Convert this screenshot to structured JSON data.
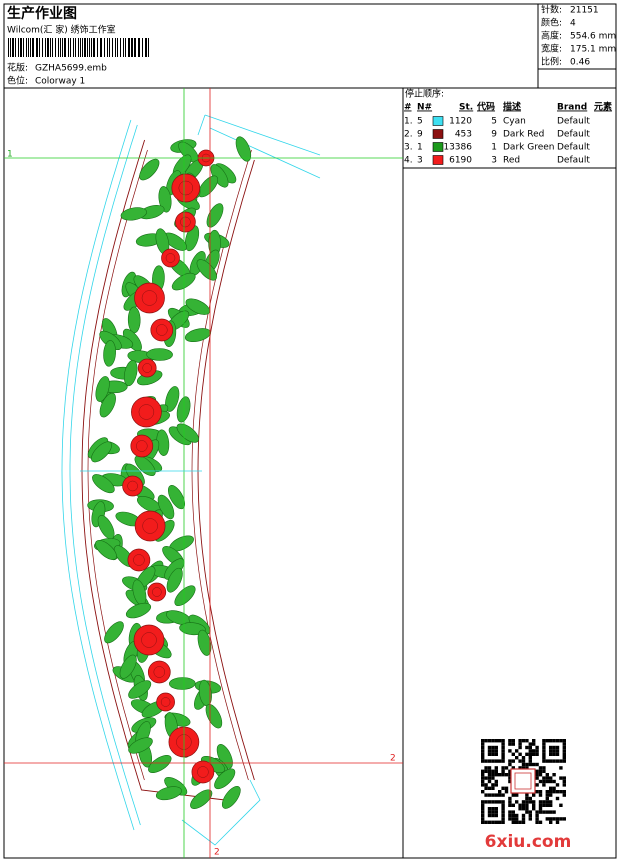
{
  "header": {
    "title": "生产作业图",
    "studio": "Wilcom(汇 家) 绣饰工作室",
    "design_label": "花版:",
    "design": "GZHA5699.emb",
    "colorway_label": "色位:",
    "colorway": "Colorway 1"
  },
  "stats": [
    {
      "label": "针数:",
      "value": "21151"
    },
    {
      "label": "颜色:",
      "value": "4"
    },
    {
      "label": "高度:",
      "value": "554.6 mm"
    },
    {
      "label": "宽度:",
      "value": "175.1 mm"
    },
    {
      "label": "比例:",
      "value": "0.46"
    }
  ],
  "stop_sequence": {
    "title": "停止顺序:",
    "columns": [
      "#",
      "N#",
      "St.",
      "代码",
      "描述",
      "Brand",
      "元素"
    ],
    "rows": [
      {
        "index": "1.",
        "needle": "5",
        "color": "#3ee0f2",
        "stitches": "1120",
        "code": "5",
        "description": "Cyan",
        "brand": "Default"
      },
      {
        "index": "2.",
        "needle": "9",
        "color": "#8b1010",
        "stitches": "453",
        "code": "9",
        "description": "Dark Red",
        "brand": "Default"
      },
      {
        "index": "3.",
        "needle": "1",
        "color": "#1c9a1c",
        "stitches": "13386",
        "code": "1",
        "description": "Dark Green",
        "brand": "Default"
      },
      {
        "index": "4.",
        "needle": "3",
        "color": "#f21c1c",
        "stitches": "6190",
        "code": "3",
        "description": "Red",
        "brand": "Default"
      }
    ]
  },
  "guides": [
    "1",
    "2",
    "2"
  ],
  "watermark": "6xiu.com"
}
